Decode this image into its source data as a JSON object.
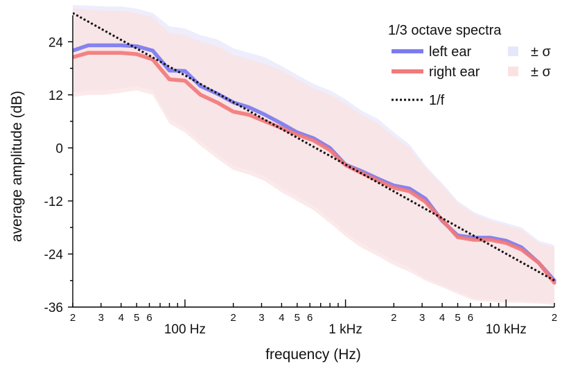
{
  "chart_data": {
    "type": "line",
    "xscale": "log",
    "xlabel": "frequency (Hz)",
    "ylabel": "average amplitude (dB)",
    "xlim": [
      20,
      20000
    ],
    "ylim": [
      -36,
      30
    ],
    "yticks": [
      24,
      12,
      0,
      -12,
      -24,
      -36
    ],
    "yticklabels": [
      "24",
      "12",
      "0",
      "-12",
      "-24",
      "-36"
    ],
    "xminor": [
      {
        "x": 20,
        "label": "2"
      },
      {
        "x": 30,
        "label": "3"
      },
      {
        "x": 40,
        "label": "4"
      },
      {
        "x": 50,
        "label": "5"
      },
      {
        "x": 60,
        "label": "6"
      },
      {
        "x": 70,
        "label": ""
      },
      {
        "x": 80,
        "label": ""
      },
      {
        "x": 90,
        "label": ""
      },
      {
        "x": 200,
        "label": "2"
      },
      {
        "x": 300,
        "label": "3"
      },
      {
        "x": 400,
        "label": "4"
      },
      {
        "x": 500,
        "label": "5"
      },
      {
        "x": 600,
        "label": "6"
      },
      {
        "x": 700,
        "label": ""
      },
      {
        "x": 800,
        "label": ""
      },
      {
        "x": 900,
        "label": ""
      },
      {
        "x": 2000,
        "label": "2"
      },
      {
        "x": 3000,
        "label": "3"
      },
      {
        "x": 4000,
        "label": "4"
      },
      {
        "x": 5000,
        "label": "5"
      },
      {
        "x": 6000,
        "label": "6"
      },
      {
        "x": 7000,
        "label": ""
      },
      {
        "x": 8000,
        "label": ""
      },
      {
        "x": 9000,
        "label": ""
      },
      {
        "x": 20000,
        "label": "2"
      }
    ],
    "xmajor": [
      {
        "x": 100,
        "label": "100 Hz"
      },
      {
        "x": 1000,
        "label": "1 kHz"
      },
      {
        "x": 10000,
        "label": "10 kHz"
      }
    ],
    "x": [
      20,
      25,
      31.5,
      40,
      50,
      63,
      80,
      100,
      125,
      160,
      200,
      250,
      315,
      400,
      500,
      630,
      800,
      1000,
      1250,
      1600,
      2000,
      2500,
      3150,
      4000,
      5000,
      6300,
      8000,
      10000,
      12500,
      16000,
      20000
    ],
    "series": [
      {
        "name": "left ear",
        "color": "#7b7bef",
        "values": [
          22,
          23.2,
          23.2,
          23.2,
          23,
          22,
          17.5,
          17.4,
          14,
          12.2,
          10.3,
          9.2,
          7.5,
          5.5,
          3.5,
          2.2,
          0,
          -3.8,
          -5.2,
          -7,
          -8.5,
          -9.2,
          -11.5,
          -16.5,
          -19.8,
          -20.3,
          -20.3,
          -21,
          -22.5,
          -26,
          -30
        ]
      },
      {
        "name": "right ear",
        "color": "#f27a7a",
        "values": [
          20.5,
          21.5,
          21.5,
          21.5,
          21.2,
          20,
          15.5,
          15.2,
          12,
          10.2,
          8.2,
          7.5,
          6,
          4.5,
          3,
          1.7,
          -0.5,
          -3.9,
          -5.6,
          -7.4,
          -9,
          -9.8,
          -12.2,
          -16.3,
          -20.2,
          -20.8,
          -20.8,
          -21.5,
          -23,
          -26,
          -30.5
        ]
      }
    ],
    "bands": [
      {
        "name": "± σ",
        "series": "left ear",
        "color": "#e7e7fb",
        "upper": [
          32.3,
          32.2,
          32,
          32,
          31.5,
          30.5,
          27.5,
          27,
          25.5,
          24.5,
          22.5,
          21.5,
          20.5,
          18.5,
          16.5,
          14.5,
          13,
          11,
          8.5,
          6.5,
          3.5,
          0.8,
          -4,
          -8,
          -12,
          -14.5,
          -16,
          -17,
          -18,
          -21,
          -22
        ],
        "lower": [
          12.5,
          13,
          13,
          13.5,
          14,
          13,
          6.5,
          4.5,
          1.5,
          -1.5,
          -4,
          -5,
          -6.5,
          -9,
          -11,
          -13,
          -16,
          -19,
          -21.5,
          -23.5,
          -25.5,
          -27,
          -29.5,
          -31,
          -32.5,
          -34,
          -34.3,
          -34.5,
          -34.5,
          -34.7,
          -35
        ]
      },
      {
        "name": "± σ",
        "series": "right ear",
        "color": "#fbe2e2",
        "upper": [
          31.5,
          31.3,
          31,
          31,
          30.5,
          29.5,
          26,
          25.5,
          24,
          23,
          21,
          20,
          19,
          17.5,
          15.5,
          13.5,
          12,
          10,
          7.5,
          5.5,
          2.5,
          0,
          -4.5,
          -8.5,
          -12.5,
          -15,
          -16.5,
          -17.5,
          -18.5,
          -21.5,
          -22.5
        ],
        "lower": [
          11.5,
          12,
          12,
          12.5,
          13,
          12,
          5.5,
          3.5,
          0.5,
          -2.5,
          -5,
          -6,
          -7.5,
          -10,
          -12,
          -14,
          -17,
          -20,
          -22.5,
          -24.5,
          -26.5,
          -28,
          -30,
          -31.5,
          -33,
          -34.5,
          -34.8,
          -35,
          -35,
          -35.2,
          -35.5
        ]
      }
    ],
    "reference": {
      "name": "1/f",
      "color": "#111111",
      "x": [
        20,
        20000
      ],
      "values": [
        30.5,
        -30
      ]
    },
    "legend": {
      "title": "1/3 octave spectra",
      "placement": "top-right",
      "entries": [
        {
          "label": "left ear",
          "kind": "line",
          "color": "#7b7bef"
        },
        {
          "label": "right ear",
          "kind": "line",
          "color": "#f27a7a"
        },
        {
          "label": "1/f",
          "kind": "dotted",
          "color": "#111111"
        }
      ],
      "band_entries": [
        {
          "label": "± σ",
          "color": "#e7e7fb"
        },
        {
          "label": "± σ",
          "color": "#fbe2e2"
        }
      ]
    }
  }
}
